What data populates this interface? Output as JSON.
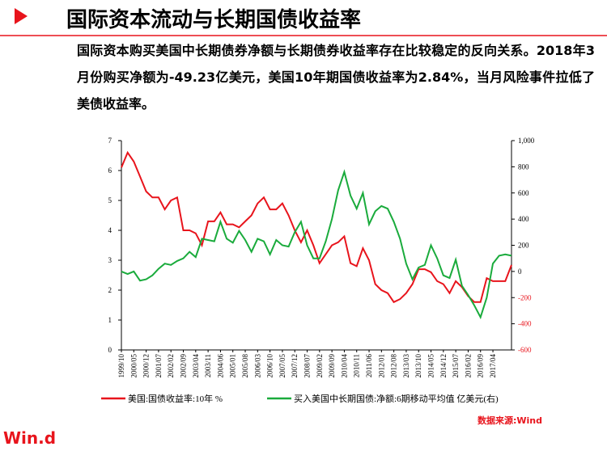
{
  "header": {
    "title": "国际资本流动与长期国债收益率"
  },
  "paragraph": "国际资本购买美国中长期债券净额与长期债券收益率存在比较稳定的反向关系。2018年3月份购买净额为-49.23亿美元，美国10年期国债收益率为2.84%，当月风险事件拉低了美债收益率。",
  "source": "数据来源:Wind",
  "logo": "Win.d",
  "chart_data": {
    "type": "line",
    "categories": [
      "1999/10",
      null,
      "2000/05",
      null,
      "2000/12",
      null,
      "2001/07",
      null,
      "2002/02",
      null,
      "2002/09",
      null,
      "2003/04",
      null,
      "2003/11",
      null,
      "2004/06",
      null,
      "2005/01",
      null,
      "2005/08",
      null,
      "2006/03",
      null,
      "2006/10",
      null,
      "2007/05",
      null,
      "2007/12",
      null,
      "2008/07",
      null,
      "2009/02",
      null,
      "2009/09",
      null,
      "2010/04",
      null,
      "2010/11",
      null,
      "2011/06",
      null,
      "2012/01",
      null,
      "2012/08",
      null,
      "2013/03",
      null,
      "2013/10",
      null,
      "2014/05",
      null,
      "2014/12",
      null,
      "2015/07",
      null,
      "2016/02",
      null,
      "2016/09",
      null,
      "2017/04",
      null,
      null,
      null
    ],
    "series": [
      {
        "name": "美国:国债收益率:10年 %",
        "color": "#e8141c",
        "values": [
          6.1,
          6.6,
          6.3,
          5.8,
          5.3,
          5.1,
          5.1,
          4.7,
          5.0,
          5.1,
          4.0,
          4.0,
          3.9,
          3.5,
          4.3,
          4.3,
          4.6,
          4.2,
          4.2,
          4.1,
          4.3,
          4.5,
          4.9,
          5.1,
          4.7,
          4.7,
          4.9,
          4.5,
          4.0,
          3.6,
          4.0,
          3.5,
          2.9,
          3.2,
          3.5,
          3.6,
          3.8,
          2.9,
          2.8,
          3.4,
          3.0,
          2.2,
          2.0,
          1.9,
          1.6,
          1.7,
          1.9,
          2.2,
          2.7,
          2.7,
          2.6,
          2.3,
          2.2,
          1.9,
          2.3,
          2.1,
          1.8,
          1.6,
          1.6,
          2.4,
          2.3,
          2.3,
          2.3,
          2.84
        ]
      },
      {
        "name": "买入美国中长期国债:净额:6期移动平均值 亿美元(右)",
        "color": "#1aab3c",
        "axis": "y2",
        "values": [
          0,
          -20,
          0,
          -70,
          -60,
          -30,
          20,
          60,
          50,
          80,
          100,
          150,
          110,
          250,
          240,
          230,
          380,
          250,
          220,
          310,
          240,
          150,
          250,
          230,
          130,
          240,
          200,
          190,
          300,
          380,
          200,
          100,
          100,
          230,
          400,
          620,
          760,
          580,
          480,
          600,
          360,
          460,
          500,
          480,
          380,
          250,
          60,
          -60,
          30,
          50,
          200,
          100,
          -30,
          -50,
          90,
          -110,
          -180,
          -260,
          -350,
          -200,
          60,
          120,
          130,
          120
        ]
      }
    ],
    "ylim": [
      0,
      7
    ],
    "yticks": [
      0,
      1,
      2,
      3,
      4,
      5,
      6,
      7
    ],
    "y2lim": [
      -600,
      1000
    ],
    "y2ticks": [
      -600,
      -400,
      -200,
      0,
      200,
      400,
      600,
      800,
      {
        "value": 1000,
        "label": "1,000"
      }
    ]
  }
}
